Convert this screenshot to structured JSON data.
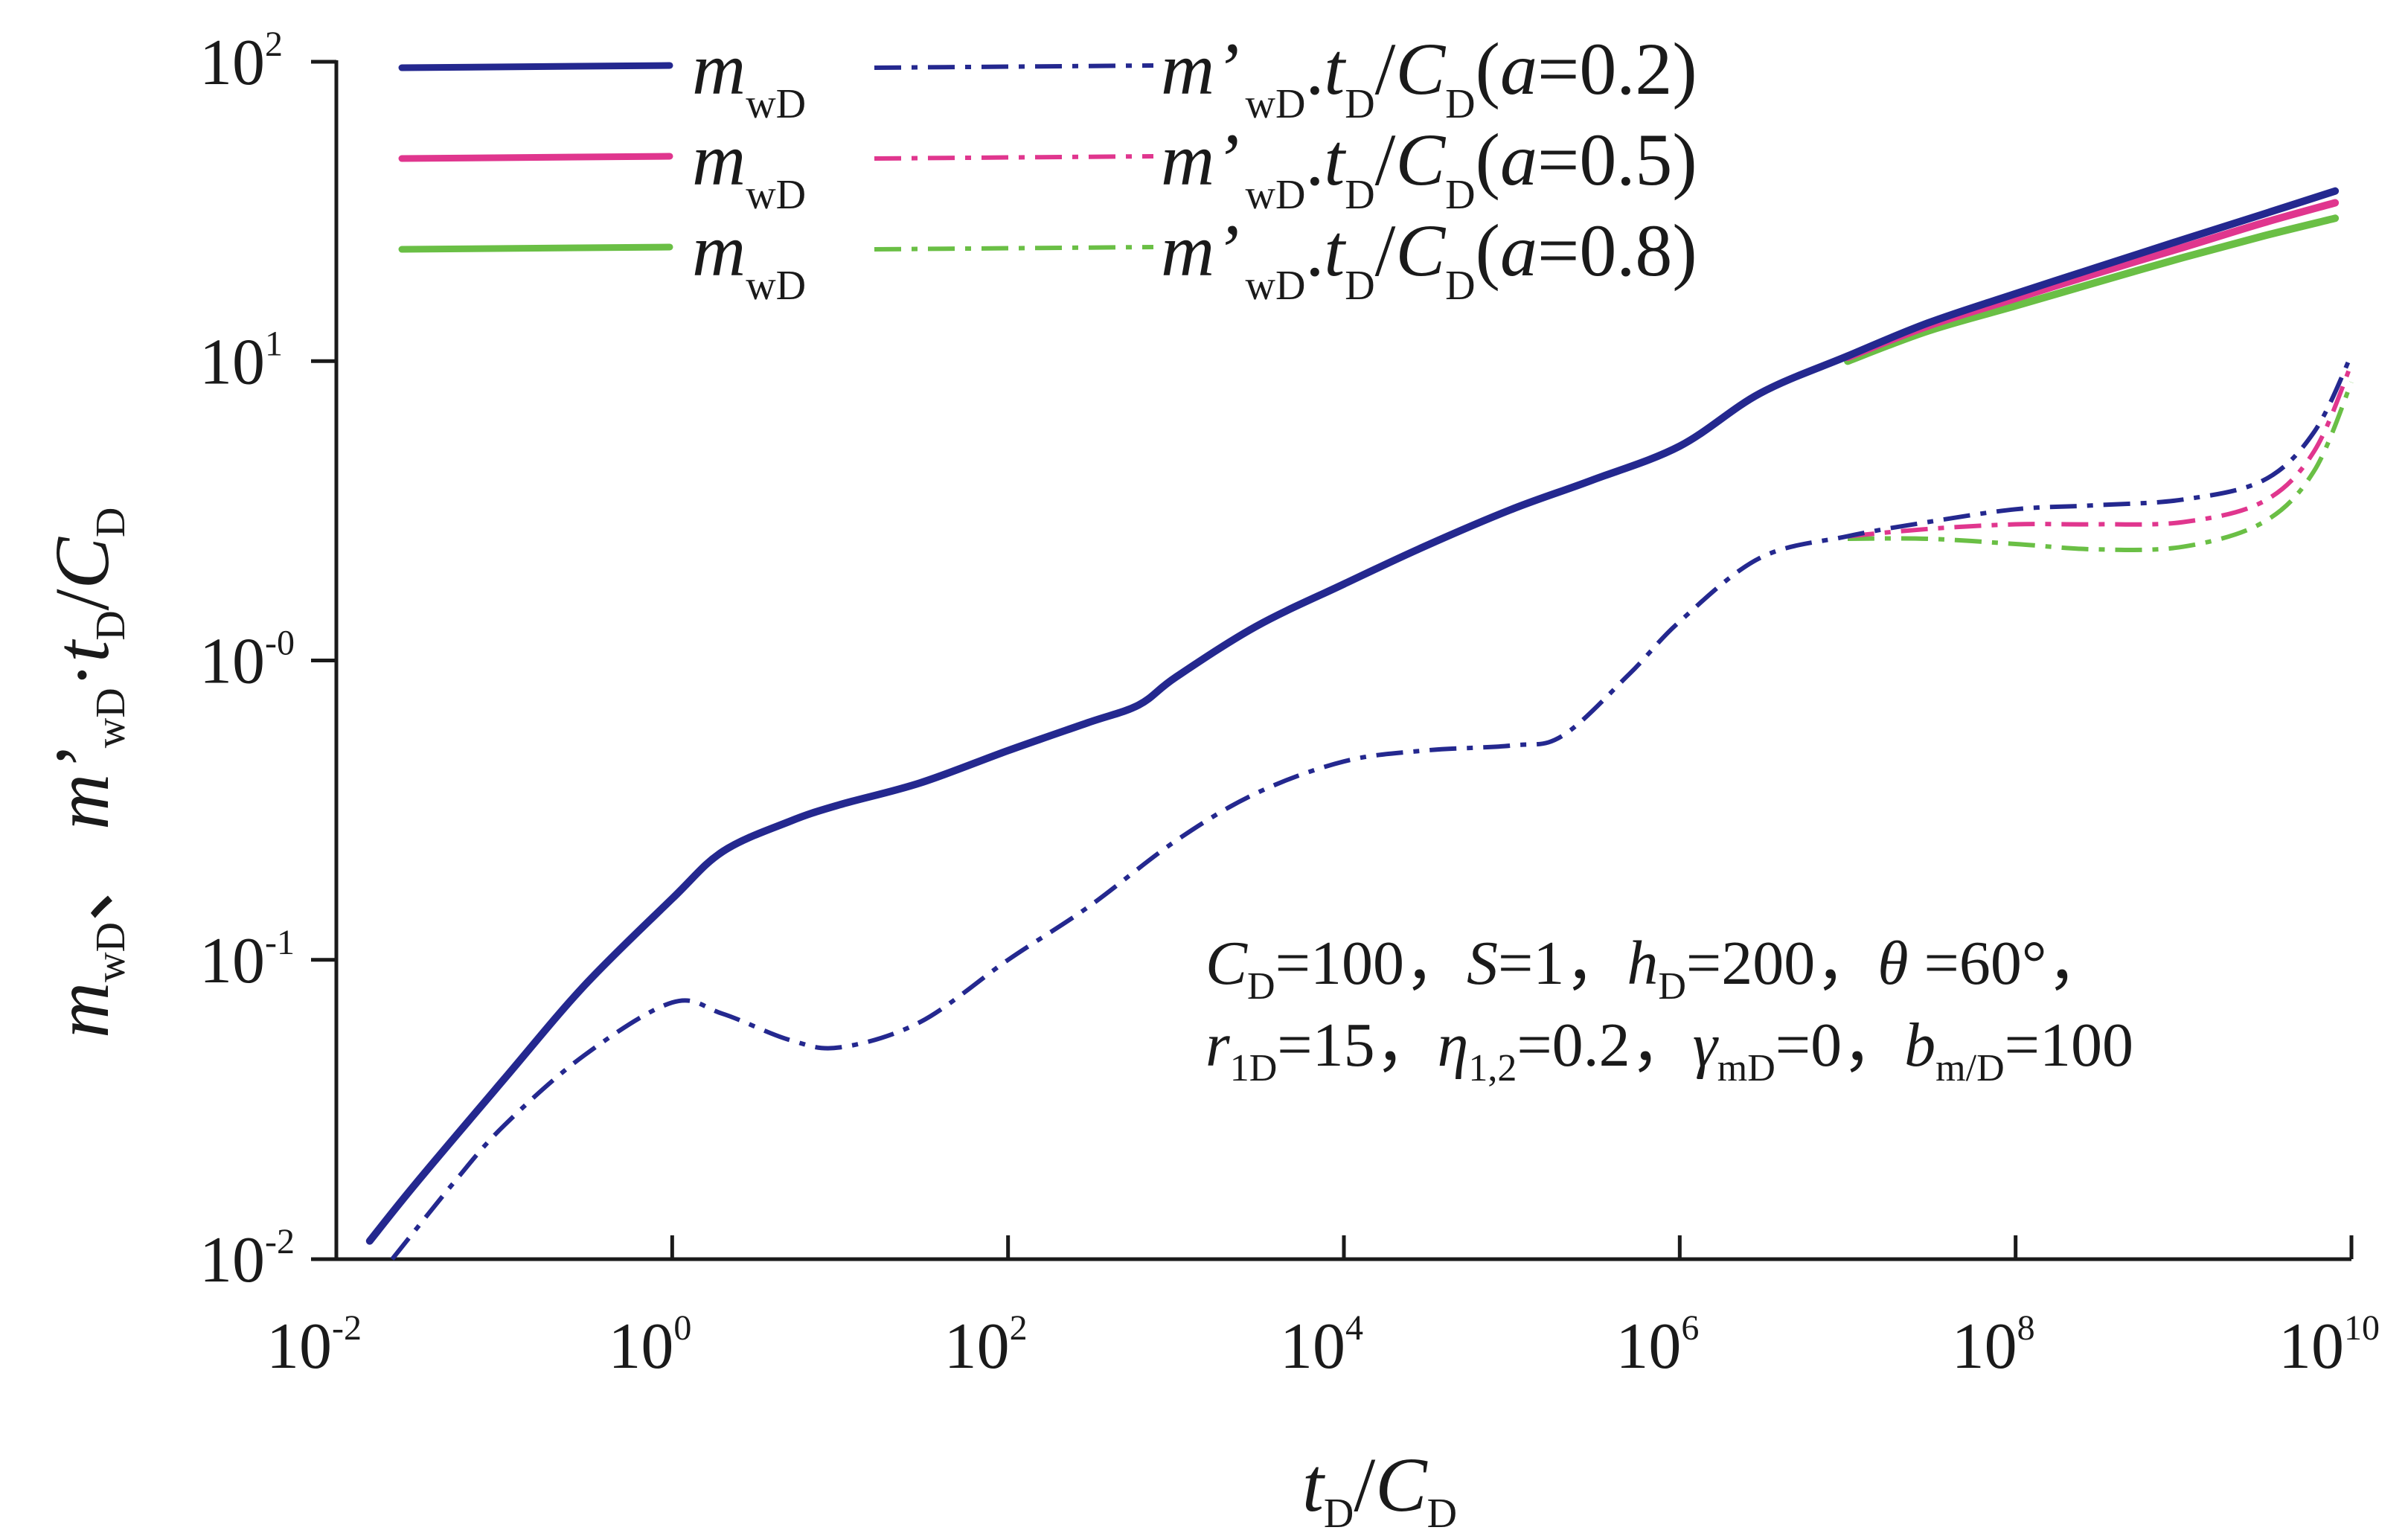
{
  "chart_data": {
    "type": "line",
    "xscale": "log",
    "yscale": "log",
    "xlim": [
      0.01,
      10000000000
    ],
    "ylim": [
      0.01,
      100
    ],
    "x_ticks": [
      {
        "base": "10",
        "exp": "-2"
      },
      {
        "base": "10",
        "exp": "0"
      },
      {
        "base": "10",
        "exp": "2"
      },
      {
        "base": "10",
        "exp": "4"
      },
      {
        "base": "10",
        "exp": "6"
      },
      {
        "base": "10",
        "exp": "8"
      },
      {
        "base": "10",
        "exp": "10"
      }
    ],
    "y_ticks": [
      {
        "base": "10",
        "exp": "-2"
      },
      {
        "base": "10",
        "exp": "-1"
      },
      {
        "base": "10",
        "exp": "-0"
      },
      {
        "base": "10",
        "exp": "1"
      },
      {
        "base": "10",
        "exp": "2"
      }
    ],
    "xlabel": {
      "t": "t",
      "t_sub": "D",
      "slash": "/",
      "c": "C",
      "c_sub": "D"
    },
    "ylabel": {
      "m": "m",
      "m_sub": "wD",
      "sep": "、",
      "m2": "m’",
      "m2_sub": "wD",
      "dot": "·",
      "t": "t",
      "t_sub": "D",
      "slash": "/",
      "c": "C",
      "c_sub": "D"
    },
    "legend": {
      "position": "top",
      "entries": [
        {
          "m": "m",
          "m_sub": "wD",
          "d": "m’",
          "d_sub": "wD",
          "mid": ".",
          "t": "t",
          "t_sub": "D",
          "slash": "/",
          "c": "C",
          "c_sub": "D",
          "open": "(",
          "a": "a",
          "eq": "=0.2",
          "close": ")"
        },
        {
          "m": "m",
          "m_sub": "wD",
          "d": "m’",
          "d_sub": "wD",
          "mid": ".",
          "t": "t",
          "t_sub": "D",
          "slash": "/",
          "c": "C",
          "c_sub": "D",
          "open": "(",
          "a": "a",
          "eq": "=0.5",
          "close": ")"
        },
        {
          "m": "m",
          "m_sub": "wD",
          "d": "m’",
          "d_sub": "wD",
          "mid": ".",
          "t": "t",
          "t_sub": "D",
          "slash": "/",
          "c": "C",
          "c_sub": "D",
          "open": "(",
          "a": "a",
          "eq": "=0.8",
          "close": ")"
        }
      ]
    },
    "annotation": {
      "line1": [
        {
          "t": "C",
          "it": true
        },
        {
          "t": "D",
          "sub": true
        },
        {
          "t": "=100，"
        },
        {
          "t": "S",
          "it": true
        },
        {
          "t": "=1，"
        },
        {
          "t": "h",
          "it": true
        },
        {
          "t": "D",
          "sub": true
        },
        {
          "t": "=200，"
        },
        {
          "t": "θ",
          "it": true
        },
        {
          "t": " =60°，"
        }
      ],
      "line2": [
        {
          "t": "r",
          "it": true
        },
        {
          "t": "1D",
          "sub": true
        },
        {
          "t": "=15，"
        },
        {
          "t": "η",
          "it": true
        },
        {
          "t": "1,2",
          "sub": true
        },
        {
          "t": "=0.2，"
        },
        {
          "t": "γ",
          "it": true
        },
        {
          "t": "mD",
          "sub": true
        },
        {
          "t": "=0，"
        },
        {
          "t": "b",
          "it": true
        },
        {
          "t": "m/D",
          "sub": true
        },
        {
          "t": "=100"
        }
      ]
    },
    "series": [
      {
        "name": "m_wD (a=0.2)",
        "color": "#24288f",
        "dash": "solid",
        "width": 10,
        "x": [
          0.0158,
          0.03,
          0.1,
          0.3,
          1,
          2,
          5,
          10,
          30,
          100,
          300,
          600,
          1000,
          3000,
          10000,
          30000,
          100000,
          300000,
          1000000,
          3000000,
          10000000,
          30000000,
          100000000,
          300000000,
          1000000000,
          3000000000,
          8000000000
        ],
        "y": [
          0.0115,
          0.018,
          0.04,
          0.082,
          0.16,
          0.23,
          0.29,
          0.33,
          0.39,
          0.5,
          0.62,
          0.71,
          0.88,
          1.3,
          1.8,
          2.4,
          3.2,
          4.0,
          5.2,
          7.8,
          10.4,
          13.4,
          16.8,
          20.5,
          25.5,
          31.0,
          37.0
        ]
      },
      {
        "name": "m'_wD·t_D/C_D (a=0.2)",
        "color": "#24288f",
        "dash": "dashdot",
        "width": 6,
        "x": [
          0.0215,
          0.05,
          0.1,
          0.3,
          1,
          2,
          5,
          10,
          30,
          100,
          300,
          1000,
          3000,
          10000,
          30000,
          100000,
          200000,
          500000,
          1000000,
          3000000,
          10000000,
          30000000,
          100000000,
          300000000,
          1000000000,
          3000000000,
          6000000000,
          10000000000
        ],
        "y": [
          0.01,
          0.018,
          0.028,
          0.048,
          0.072,
          0.066,
          0.054,
          0.051,
          0.062,
          0.1,
          0.15,
          0.25,
          0.36,
          0.46,
          0.5,
          0.52,
          0.56,
          0.9,
          1.35,
          2.2,
          2.6,
          2.9,
          3.2,
          3.3,
          3.45,
          4.0,
          5.8,
          10.5
        ]
      },
      {
        "name": "m_wD (a=0.5)",
        "color": "#e0368e",
        "dash": "solid",
        "width": 10,
        "x": [
          10000000,
          30000000,
          100000000,
          300000000,
          1000000000,
          3000000000,
          8000000000
        ],
        "y": [
          10.3,
          13.1,
          16.2,
          19.6,
          24.0,
          29.0,
          33.8
        ]
      },
      {
        "name": "m'_wD·t_D/C_D (a=0.5)",
        "color": "#e0368e",
        "dash": "dashdot",
        "width": 6,
        "x": [
          10000000,
          30000000,
          100000000,
          300000000,
          1000000000,
          3000000000,
          6000000000,
          10000000000
        ],
        "y": [
          2.6,
          2.75,
          2.85,
          2.85,
          2.9,
          3.4,
          5.0,
          9.8
        ]
      },
      {
        "name": "m_wD (a=0.8)",
        "color": "#6abf45",
        "dash": "solid",
        "width": 10,
        "x": [
          10000000,
          30000000,
          100000000,
          300000000,
          1000000000,
          3000000000,
          8000000000
        ],
        "y": [
          10.0,
          12.6,
          15.3,
          18.3,
          22.2,
          26.2,
          30.0
        ]
      },
      {
        "name": "m'_wD·t_D/C_D (a=0.8)",
        "color": "#6abf45",
        "dash": "dashdot",
        "width": 6,
        "x": [
          10000000,
          30000000,
          100000000,
          300000000,
          1000000000,
          3000000000,
          6000000000,
          10000000000
        ],
        "y": [
          2.55,
          2.55,
          2.45,
          2.35,
          2.4,
          2.9,
          4.3,
          8.5
        ]
      }
    ]
  }
}
